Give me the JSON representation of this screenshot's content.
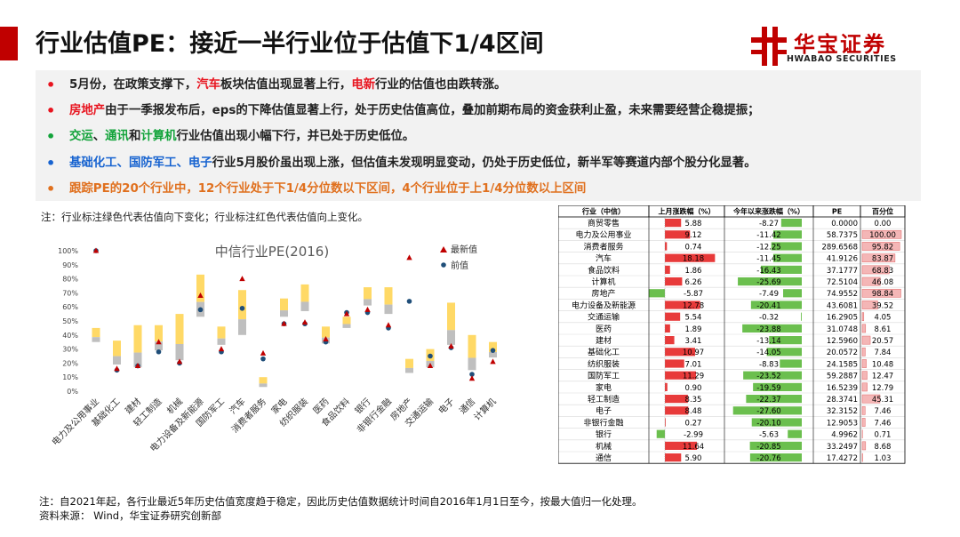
{
  "title": "行业估值PE：接近一半行业位于估值下1/4区间",
  "logo": {
    "cn": "华宝证券",
    "en": "HWABAO SECURITIES"
  },
  "colors": {
    "red": "#e8141f",
    "green": "#12a33a",
    "blue": "#1763d0",
    "orange": "#e0701e",
    "brand": "#c00000",
    "bar_yellow": "#ffd966",
    "bar_gray": "#bfbfbf",
    "latest_marker": "#c00000",
    "prev_marker": "#1f4e79"
  },
  "bullets": [
    {
      "dot_color": "#e8141f",
      "segments": [
        {
          "text": "5月份，在政策支撑下，"
        },
        {
          "text": "汽车",
          "color": "red"
        },
        {
          "text": "板块估值出现显著上行，"
        },
        {
          "text": "电新",
          "color": "red"
        },
        {
          "text": "行业的估值也由跌转涨。"
        }
      ]
    },
    {
      "dot_color": "#e8141f",
      "segments": [
        {
          "text": "房地产",
          "color": "red"
        },
        {
          "text": "由于一季报发布后，eps的下降估值显著上行，处于历史估值高位，叠加前期布局的资金获利止盈，未来需要经营企稳提振；"
        }
      ]
    },
    {
      "dot_color": "#12a33a",
      "segments": [
        {
          "text": "交运",
          "color": "green"
        },
        {
          "text": "、"
        },
        {
          "text": "通讯",
          "color": "green"
        },
        {
          "text": "和"
        },
        {
          "text": "计算机",
          "color": "green"
        },
        {
          "text": "行业估值出现小幅下行，并已处于历史低位。"
        }
      ]
    },
    {
      "dot_color": "#1763d0",
      "segments": [
        {
          "text": "基础化工、国防军工、电子",
          "color": "blue"
        },
        {
          "text": "行业5月股价虽出现上涨，但估值未发现明显变动，仍处于历史低位，新半军等赛道内部个股分化显著。"
        }
      ]
    },
    {
      "dot_color": "#e0701e",
      "segments": [
        {
          "text": "跟踪PE的20个行业中，12个行业处于下1/4分位数以下区间，4个行业位于上1/4分位数以上区间",
          "color": "orange"
        }
      ]
    }
  ],
  "note_top": "注：行业标注绿色代表估值向下变化；行业标注红色代表估值向上变化。",
  "chart_data": {
    "type": "bar",
    "title": "中信行业PE(2016)",
    "legend": [
      "最新值",
      "前值"
    ],
    "legend_position": "top-right",
    "y_ticks": [
      "100%",
      "90%",
      "80%",
      "70%",
      "60%",
      "50%",
      "40%",
      "30%",
      "20%",
      "10%",
      "0%"
    ],
    "ylim": [
      0,
      100
    ],
    "categories": [
      "电力及公用事业",
      "基础化工",
      "建材",
      "轻工制造",
      "机械",
      "电力设备及新能源",
      "国防军工",
      "汽车",
      "消费者服务",
      "家电",
      "纺织服装",
      "医药",
      "食品饮料",
      "银行",
      "非银行金融",
      "房地产",
      "交通运输",
      "电子",
      "通信",
      "计算机"
    ],
    "range_low": [
      35,
      19,
      17,
      29,
      22,
      53,
      33,
      40,
      3,
      53,
      57,
      34,
      45,
      61,
      55,
      13,
      17,
      33,
      15,
      24
    ],
    "range_high": [
      45,
      36,
      47,
      47,
      55,
      83,
      46,
      72,
      10,
      66,
      76,
      46,
      53,
      74,
      74,
      23,
      30,
      63,
      40,
      35
    ],
    "latest": [
      100,
      16,
      18,
      35,
      21,
      68,
      30,
      80,
      27,
      48,
      49,
      37,
      55,
      58,
      47,
      95,
      18,
      32,
      9,
      21
    ],
    "previous": [
      100,
      15,
      18,
      28,
      20,
      58,
      28,
      59,
      23,
      48,
      48,
      35,
      56,
      56,
      45,
      64,
      25,
      31,
      12,
      29
    ]
  },
  "table": {
    "headers": [
      "行业（中信）",
      "上月涨跌幅（%）",
      "今年以来涨跌幅（%）",
      "PE",
      "百分位"
    ],
    "rows": [
      [
        "商贸零售",
        "5.88",
        "-8.27",
        "0.0000",
        "0.00"
      ],
      [
        "电力及公用事业",
        "9.12",
        "-11.42",
        "58.7375",
        "100.00"
      ],
      [
        "消费者服务",
        "0.74",
        "-12.25",
        "289.6568",
        "95.82"
      ],
      [
        "汽车",
        "18.18",
        "-11.45",
        "41.9126",
        "83.87"
      ],
      [
        "食品饮料",
        "1.86",
        "-16.43",
        "37.1777",
        "68.83"
      ],
      [
        "计算机",
        "6.26",
        "-25.69",
        "72.5104",
        "46.08"
      ],
      [
        "房地产",
        "-5.87",
        "-7.49",
        "74.9552",
        "98.84"
      ],
      [
        "电力设备及新能源",
        "12.78",
        "-20.41",
        "43.6081",
        "39.52"
      ],
      [
        "交通运输",
        "5.54",
        "-0.32",
        "16.2905",
        "4.05"
      ],
      [
        "医药",
        "1.89",
        "-23.88",
        "31.0748",
        "8.61"
      ],
      [
        "建材",
        "3.41",
        "-13.14",
        "12.5960",
        "20.57"
      ],
      [
        "基础化工",
        "10.97",
        "-14.05",
        "20.0572",
        "7.84"
      ],
      [
        "纺织服装",
        "7.01",
        "-8.83",
        "24.1585",
        "10.48"
      ],
      [
        "国防军工",
        "11.29",
        "-23.52",
        "59.2887",
        "12.47"
      ],
      [
        "家电",
        "0.90",
        "-19.59",
        "16.5239",
        "12.79"
      ],
      [
        "轻工制造",
        "8.35",
        "-22.37",
        "28.3741",
        "45.31"
      ],
      [
        "电子",
        "8.48",
        "-27.60",
        "32.3152",
        "7.46"
      ],
      [
        "非银行金融",
        "0.27",
        "-20.10",
        "12.9053",
        "7.46"
      ],
      [
        "银行",
        "-2.99",
        "-5.63",
        "4.9962",
        "0.71"
      ],
      [
        "机械",
        "11.64",
        "-20.85",
        "33.2497",
        "8.68"
      ],
      [
        "通信",
        "5.90",
        "-20.76",
        "17.4272",
        "1.03"
      ]
    ]
  },
  "footnotes": [
    "注：自2021年起，各行业最近5年历史估值宽度趋于稳定，因此历史估值数据统计时间自2016年1月1日至今，按最大值归一化处理。",
    "资料来源： Wind，华宝证券研究创新部"
  ]
}
